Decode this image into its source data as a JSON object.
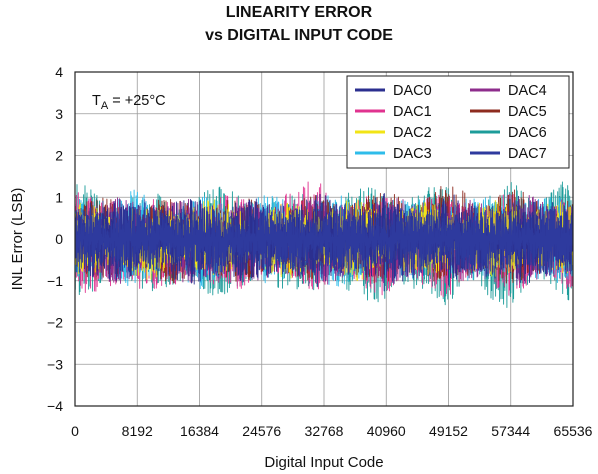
{
  "chart_data": {
    "type": "line",
    "title": "LINEARITY ERROR",
    "subtitle": "vs DIGITAL INPUT CODE",
    "xlabel": "Digital Input Code",
    "ylabel": "INL Error (LSB)",
    "xlim": [
      0,
      65536
    ],
    "ylim": [
      -4,
      4
    ],
    "xticks": [
      "0",
      "8192",
      "16384",
      "24576",
      "32768",
      "40960",
      "49152",
      "57344",
      "65536"
    ],
    "yticks": [
      "4",
      "3",
      "2",
      "1",
      "0",
      "−1",
      "−2",
      "−3",
      "−4"
    ],
    "grid": true,
    "legend_position": "top-right",
    "annotation": {
      "main": "T",
      "sub": "A",
      "rest": " = +25°C"
    },
    "series": [
      {
        "name": "DAC0",
        "color": "#2b2f8f",
        "envelope": [
          [
            0,
            1.2,
            -1.1
          ],
          [
            4096,
            0.9,
            -1.0
          ],
          [
            8192,
            1.1,
            -1.2
          ],
          [
            12288,
            0.8,
            -0.9
          ],
          [
            16384,
            1.2,
            -1.3
          ],
          [
            20480,
            1.0,
            -1.0
          ],
          [
            24576,
            1.0,
            -1.1
          ],
          [
            28672,
            0.9,
            -1.0
          ],
          [
            32768,
            1.1,
            -1.2
          ],
          [
            36864,
            1.0,
            -1.0
          ],
          [
            40960,
            1.1,
            -1.3
          ],
          [
            45056,
            0.9,
            -1.0
          ],
          [
            49152,
            1.1,
            -1.2
          ],
          [
            53248,
            0.9,
            -1.1
          ],
          [
            57344,
            1.1,
            -1.2
          ],
          [
            61440,
            0.9,
            -1.0
          ],
          [
            65535,
            1.1,
            -1.1
          ]
        ]
      },
      {
        "name": "DAC1",
        "color": "#e0338f",
        "envelope": [
          [
            0,
            1.3,
            -1.3
          ],
          [
            4096,
            1.0,
            -1.4
          ],
          [
            8192,
            1.2,
            -1.6
          ],
          [
            12288,
            0.9,
            -1.1
          ],
          [
            16384,
            1.2,
            -1.4
          ],
          [
            20480,
            1.1,
            -1.2
          ],
          [
            24576,
            1.1,
            -1.3
          ],
          [
            28672,
            1.3,
            -1.0
          ],
          [
            32768,
            1.6,
            -1.5
          ],
          [
            36864,
            1.0,
            -1.2
          ],
          [
            40960,
            1.2,
            -1.5
          ],
          [
            45056,
            1.0,
            -1.3
          ],
          [
            49152,
            1.2,
            -1.5
          ],
          [
            53248,
            1.0,
            -1.1
          ],
          [
            57344,
            1.2,
            -1.4
          ],
          [
            61440,
            1.0,
            -1.2
          ],
          [
            65535,
            1.2,
            -1.3
          ]
        ]
      },
      {
        "name": "DAC2",
        "color": "#f2e416",
        "envelope": [
          [
            0,
            0.9,
            -0.9
          ],
          [
            8192,
            0.8,
            -1.0
          ],
          [
            16384,
            1.0,
            -0.9
          ],
          [
            24576,
            0.8,
            -0.9
          ],
          [
            32768,
            1.0,
            -1.0
          ],
          [
            40960,
            0.9,
            -1.0
          ],
          [
            49152,
            0.9,
            -0.9
          ],
          [
            57344,
            1.0,
            -1.0
          ],
          [
            65535,
            0.9,
            -0.9
          ]
        ]
      },
      {
        "name": "DAC3",
        "color": "#2ebcea",
        "envelope": [
          [
            0,
            1.1,
            -1.0
          ],
          [
            4096,
            1.0,
            -1.1
          ],
          [
            8192,
            1.2,
            -1.2
          ],
          [
            12288,
            0.9,
            -1.0
          ],
          [
            16384,
            1.1,
            -1.2
          ],
          [
            20480,
            1.0,
            -1.0
          ],
          [
            24576,
            1.1,
            -1.1
          ],
          [
            28672,
            1.0,
            -1.0
          ],
          [
            32768,
            1.2,
            -1.2
          ],
          [
            36864,
            1.0,
            -1.1
          ],
          [
            40960,
            1.1,
            -1.2
          ],
          [
            45056,
            1.0,
            -1.0
          ],
          [
            49152,
            1.1,
            -1.2
          ],
          [
            53248,
            1.0,
            -1.0
          ],
          [
            57344,
            1.2,
            -1.1
          ],
          [
            61440,
            1.0,
            -1.0
          ],
          [
            65535,
            1.1,
            -1.2
          ]
        ]
      },
      {
        "name": "DAC4",
        "color": "#8e2c8c",
        "envelope": [
          [
            0,
            1.0,
            -1.0
          ],
          [
            8192,
            1.0,
            -1.1
          ],
          [
            16384,
            1.1,
            -1.1
          ],
          [
            24576,
            0.9,
            -1.0
          ],
          [
            32768,
            1.1,
            -1.1
          ],
          [
            40960,
            1.0,
            -1.1
          ],
          [
            49152,
            1.0,
            -1.0
          ],
          [
            57344,
            1.1,
            -1.1
          ],
          [
            65535,
            1.0,
            -1.0
          ]
        ]
      },
      {
        "name": "DAC5",
        "color": "#8e2b1f",
        "envelope": [
          [
            0,
            1.0,
            -1.0
          ],
          [
            8192,
            1.0,
            -1.0
          ],
          [
            16384,
            1.0,
            -1.1
          ],
          [
            24576,
            1.0,
            -1.0
          ],
          [
            32768,
            1.1,
            -1.0
          ],
          [
            40960,
            1.2,
            -1.1
          ],
          [
            49152,
            1.3,
            -1.1
          ],
          [
            57344,
            1.2,
            -1.2
          ],
          [
            65535,
            1.1,
            -1.0
          ]
        ]
      },
      {
        "name": "DAC6",
        "color": "#1c9c9a",
        "envelope": [
          [
            0,
            1.4,
            -1.4
          ],
          [
            4096,
            1.1,
            -1.3
          ],
          [
            8192,
            1.3,
            -1.5
          ],
          [
            12288,
            1.0,
            -1.2
          ],
          [
            16384,
            1.4,
            -1.6
          ],
          [
            20480,
            1.2,
            -1.3
          ],
          [
            24576,
            1.3,
            -1.5
          ],
          [
            28672,
            1.1,
            -1.2
          ],
          [
            32768,
            1.4,
            -1.6
          ],
          [
            36864,
            1.2,
            -1.3
          ],
          [
            40960,
            1.4,
            -1.8
          ],
          [
            45056,
            1.2,
            -1.5
          ],
          [
            49152,
            1.4,
            -1.8
          ],
          [
            53248,
            1.2,
            -1.4
          ],
          [
            57344,
            1.5,
            -1.7
          ],
          [
            61440,
            1.3,
            -1.4
          ],
          [
            65535,
            1.5,
            -1.5
          ]
        ]
      },
      {
        "name": "DAC7",
        "color": "#2e3a9e",
        "envelope": [
          [
            0,
            0.9,
            -0.9
          ],
          [
            8192,
            0.9,
            -0.9
          ],
          [
            16384,
            0.9,
            -1.0
          ],
          [
            24576,
            0.8,
            -0.9
          ],
          [
            32768,
            0.9,
            -0.9
          ],
          [
            40960,
            0.9,
            -1.0
          ],
          [
            49152,
            0.9,
            -0.9
          ],
          [
            57344,
            0.9,
            -1.0
          ],
          [
            65535,
            0.9,
            -0.9
          ]
        ]
      }
    ]
  }
}
